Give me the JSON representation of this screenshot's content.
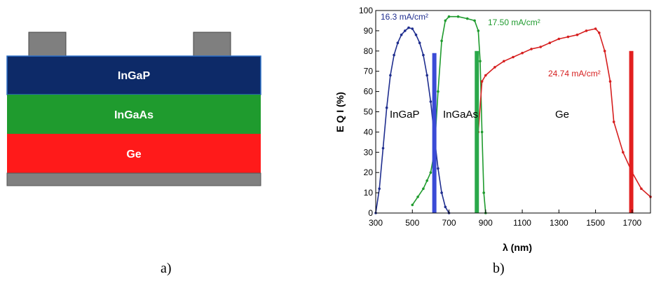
{
  "stack": {
    "layers": [
      {
        "label": "InGaP",
        "color": "#0d2a68"
      },
      {
        "label": "InGaAs",
        "color": "#1f9b2e"
      },
      {
        "label": "Ge",
        "color": "#ff1a1a"
      }
    ],
    "contact_color": "#7f7f7f",
    "substrate_color": "#808080"
  },
  "captions": {
    "a": "a)",
    "b": "b)"
  },
  "chart_data": {
    "type": "line",
    "xlabel": "λ (nm)",
    "ylabel": "E Q I   (%)",
    "xlim": [
      300,
      1800
    ],
    "ylim": [
      0,
      100
    ],
    "xticks": [
      "300",
      "500",
      "700",
      "900",
      "1100",
      "1300",
      "1500",
      "1700"
    ],
    "yticks": [
      "0",
      "10",
      "20",
      "30",
      "40",
      "50",
      "60",
      "70",
      "80",
      "90",
      "100"
    ],
    "grid": false,
    "series": [
      {
        "name": "InGaP",
        "color": "#1f2e8f",
        "current_label": "16.3 mA/cm²",
        "x": [
          300,
          320,
          340,
          360,
          380,
          400,
          420,
          440,
          460,
          480,
          500,
          520,
          540,
          560,
          580,
          600,
          620,
          640,
          660,
          680,
          700
        ],
        "y": [
          0,
          12,
          32,
          52,
          68,
          78,
          84,
          88,
          90,
          91.5,
          91,
          88,
          84,
          78,
          68,
          55,
          38,
          22,
          10,
          3,
          0
        ]
      },
      {
        "name": "InGaAs",
        "color": "#1f9b2e",
        "current_label": "17.50 mA/cm²",
        "x": [
          500,
          530,
          560,
          580,
          600,
          620,
          640,
          660,
          680,
          700,
          750,
          800,
          840,
          860,
          870,
          880,
          890,
          900
        ],
        "y": [
          4,
          8,
          12,
          16,
          20,
          30,
          60,
          85,
          95,
          97,
          97,
          96,
          95,
          90,
          75,
          40,
          10,
          0
        ]
      },
      {
        "name": "Ge",
        "color": "#d61f1f",
        "current_label": "24.74 mA/cm²",
        "x": [
          860,
          880,
          900,
          950,
          1000,
          1050,
          1100,
          1150,
          1200,
          1250,
          1300,
          1350,
          1400,
          1450,
          1500,
          1520,
          1550,
          1580,
          1600,
          1650,
          1700,
          1750,
          1800
        ],
        "y": [
          40,
          65,
          68,
          72,
          75,
          77,
          79,
          81,
          82,
          84,
          86,
          87,
          88,
          90,
          91,
          89,
          80,
          65,
          45,
          30,
          20,
          12,
          8
        ]
      }
    ],
    "markers": [
      {
        "x": 620,
        "y_top": 79,
        "color": "#3a4bd6"
      },
      {
        "x": 852,
        "y_top": 80,
        "color": "#2aa84a"
      },
      {
        "x": 1695,
        "y_top": 80,
        "color": "#e21f1f"
      }
    ],
    "annotations": [
      "InGaP",
      "InGaAs",
      "Ge"
    ]
  }
}
